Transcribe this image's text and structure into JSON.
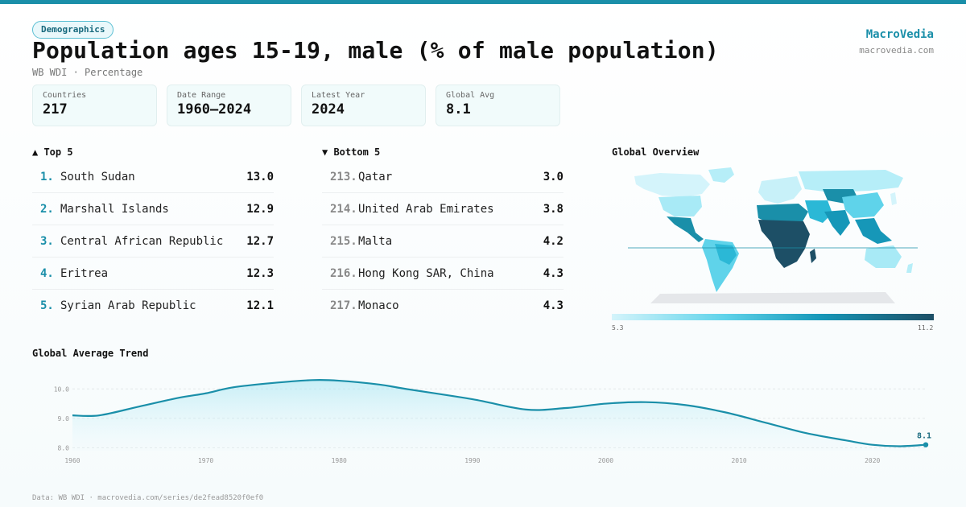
{
  "tag": "Demographics",
  "title": "Population ages 15-19, male (% of male population)",
  "subtitle": "WB WDI · Percentage",
  "brand": {
    "name": "MacroVedia",
    "url": "macrovedia.com"
  },
  "stats": [
    {
      "label": "Countries",
      "value": "217"
    },
    {
      "label": "Date Range",
      "value": "1960–2024"
    },
    {
      "label": "Latest Year",
      "value": "2024"
    },
    {
      "label": "Global Avg",
      "value": "8.1"
    }
  ],
  "top5": {
    "heading": "▲ Top 5",
    "rows": [
      {
        "rank": "1.",
        "name": "South Sudan",
        "value": "13.0"
      },
      {
        "rank": "2.",
        "name": "Marshall Islands",
        "value": "12.9"
      },
      {
        "rank": "3.",
        "name": "Central African Republic",
        "value": "12.7"
      },
      {
        "rank": "4.",
        "name": "Eritrea",
        "value": "12.3"
      },
      {
        "rank": "5.",
        "name": "Syrian Arab Republic",
        "value": "12.1"
      }
    ]
  },
  "bottom5": {
    "heading": "▼ Bottom 5",
    "rows": [
      {
        "rank": "213.",
        "name": "Qatar",
        "value": "3.0"
      },
      {
        "rank": "214.",
        "name": "United Arab Emirates",
        "value": "3.8"
      },
      {
        "rank": "215.",
        "name": "Malta",
        "value": "4.2"
      },
      {
        "rank": "216.",
        "name": "Hong Kong SAR, China",
        "value": "4.3"
      },
      {
        "rank": "217.",
        "name": "Monaco",
        "value": "4.3"
      }
    ]
  },
  "map": {
    "heading": "Global Overview",
    "legend_min": "5.3",
    "legend_max": "11.2",
    "colors": {
      "low": "#d4f4fb",
      "mid_low": "#5fd3ea",
      "mid_high": "#1697b8",
      "high": "#1d4f66",
      "no_data": "#e5e7ea"
    }
  },
  "chart_data": {
    "type": "line",
    "title": "Global Average Trend",
    "xlabel": "",
    "ylabel": "",
    "x": [
      1960,
      1962,
      1965,
      1968,
      1970,
      1972,
      1975,
      1978,
      1980,
      1983,
      1985,
      1990,
      1994,
      1997,
      2000,
      2003,
      2006,
      2009,
      2012,
      2015,
      2018,
      2020,
      2022,
      2024
    ],
    "y": [
      9.1,
      9.1,
      9.4,
      9.7,
      9.85,
      10.05,
      10.2,
      10.3,
      10.28,
      10.15,
      10.0,
      9.65,
      9.3,
      9.35,
      9.5,
      9.55,
      9.45,
      9.2,
      8.85,
      8.5,
      8.25,
      8.1,
      8.05,
      8.1
    ],
    "xticks": [
      "1960",
      "1970",
      "1980",
      "1990",
      "2000",
      "2010",
      "2020"
    ],
    "yticks": [
      "8.0",
      "9.0",
      "10.0"
    ],
    "ylim": [
      7.9,
      10.5
    ],
    "xlim": [
      1960,
      2024
    ],
    "end_label": "8.1",
    "line_color": "#1a8fa9",
    "grid": true
  },
  "source": "Data: WB WDI · macrovedia.com/series/de2fead8520f0ef0"
}
